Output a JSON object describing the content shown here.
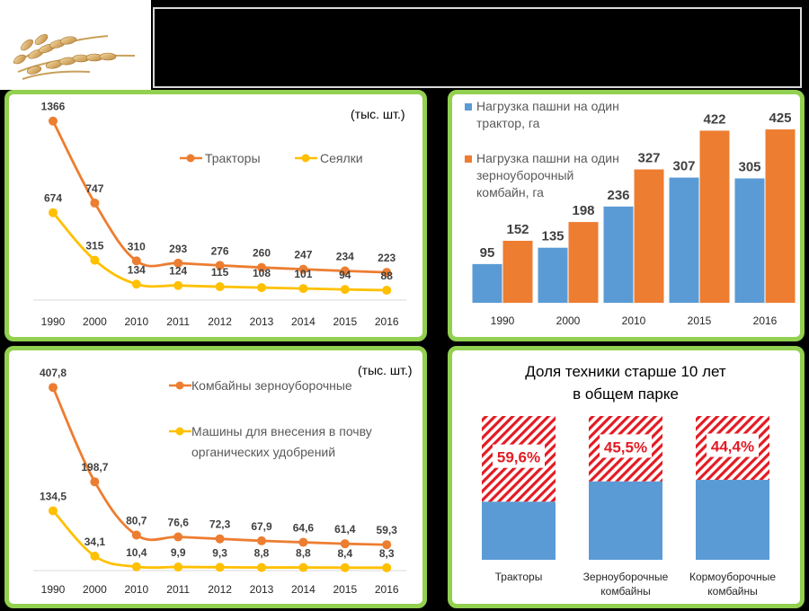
{
  "colors": {
    "orange": "#ED7D31",
    "yellow": "#FFC000",
    "blue": "#5B9BD5",
    "red": "#E31B23",
    "green": "#92D050"
  },
  "logo": {
    "icon": "wheat-ears-icon"
  },
  "chart_data": [
    {
      "type": "line",
      "unit": "(тыс. шт.)",
      "categories": [
        "1990",
        "2000",
        "2010",
        "2011",
        "2012",
        "2013",
        "2014",
        "2015",
        "2016"
      ],
      "series": [
        {
          "name": "Тракторы",
          "values": [
            1366,
            747,
            310,
            293,
            276,
            260,
            247,
            234,
            223
          ],
          "labels": [
            "1366",
            "747",
            "310",
            "293",
            "276",
            "260",
            "247",
            "234",
            "223"
          ]
        },
        {
          "name": "Сеялки",
          "values": [
            674,
            315,
            134,
            124,
            115,
            108,
            101,
            94,
            88
          ],
          "labels": [
            "674",
            "315",
            "134",
            "124",
            "115",
            "108",
            "101",
            "94",
            "88"
          ]
        }
      ],
      "ylim": [
        0,
        1500
      ],
      "grid": false,
      "legend": "top-right"
    },
    {
      "type": "bar",
      "categories": [
        "1990",
        "2000",
        "2010",
        "2015",
        "2016"
      ],
      "series": [
        {
          "name_lines": [
            "Нагрузка пашни на один",
            "трактор, га"
          ],
          "values": [
            95,
            135,
            236,
            307,
            305
          ]
        },
        {
          "name_lines": [
            "Нагрузка пашни на один",
            "зерноуборочный",
            "комбайн, га"
          ],
          "values": [
            152,
            198,
            327,
            422,
            425
          ]
        }
      ],
      "ylim": [
        0,
        500
      ],
      "grid": false,
      "legend": "top-left"
    },
    {
      "type": "line",
      "unit": "(тыс. шт.)",
      "categories": [
        "1990",
        "2000",
        "2010",
        "2011",
        "2012",
        "2013",
        "2014",
        "2015",
        "2016"
      ],
      "series": [
        {
          "name_lines": [
            "Комбайны зерноуборочные"
          ],
          "values": [
            407.8,
            198.7,
            80.7,
            76.6,
            72.3,
            67.9,
            64.6,
            61.4,
            59.3
          ],
          "labels": [
            "407,8",
            "198,7",
            "80,7",
            "76,6",
            "72,3",
            "67,9",
            "64,6",
            "61,4",
            "59,3"
          ]
        },
        {
          "name_lines": [
            "Машины для внесения в почву",
            "органических удобрений"
          ],
          "values": [
            134.5,
            34.1,
            10.4,
            9.9,
            9.3,
            8.8,
            8.8,
            8.4,
            8.3
          ],
          "labels": [
            "134,5",
            "34,1",
            "10,4",
            "9,9",
            "9,3",
            "8,8",
            "8,8",
            "8,4",
            "8,3"
          ]
        }
      ],
      "ylim": [
        0,
        450
      ],
      "grid": false,
      "legend": "top-right"
    },
    {
      "type": "bar",
      "stacked": true,
      "title_lines": [
        "Доля техники старше 10 лет",
        "в общем парке"
      ],
      "categories": [
        {
          "lines": [
            "Тракторы"
          ]
        },
        {
          "lines": [
            "Зерноуборочные",
            "комбайны"
          ]
        },
        {
          "lines": [
            "Кормоуборочные",
            "комбайны"
          ]
        }
      ],
      "older_share_pct": [
        59.6,
        45.5,
        44.4
      ],
      "labels": [
        "59,6%",
        "45,5%",
        "44,4%"
      ],
      "ylim": [
        0,
        100
      ]
    }
  ]
}
